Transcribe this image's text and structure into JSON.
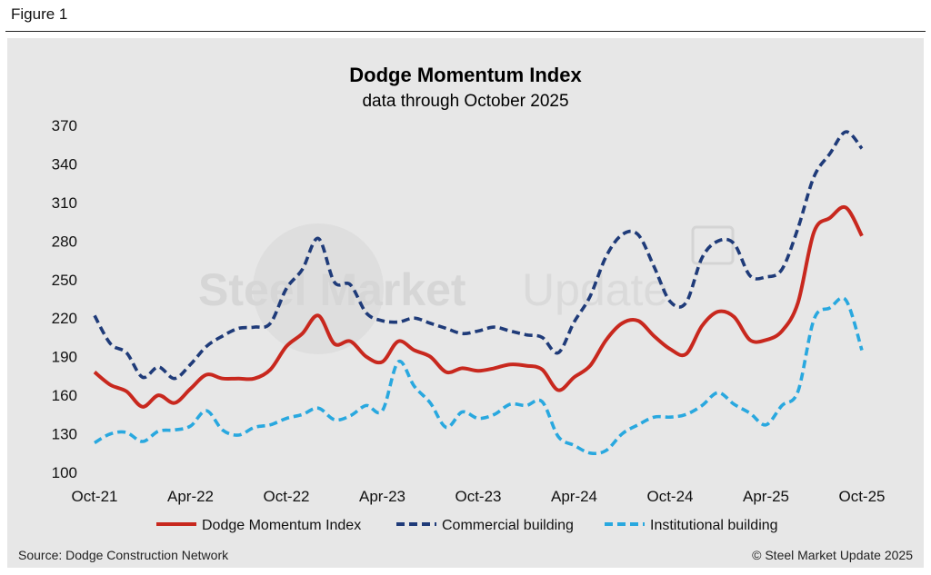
{
  "figure_label": "Figure 1",
  "source": "Source: Dodge Construction Network",
  "copyright": "© Steel Market Update 2025",
  "watermark": {
    "bold": "Steel Market",
    "light": "Update"
  },
  "colors": {
    "dmi": "#c8281e",
    "commercial": "#1f3b79",
    "institutional": "#29a8df"
  },
  "chart_data": {
    "type": "line",
    "title": "Dodge Momentum Index",
    "subtitle": "data through October 2025",
    "ylim": [
      100,
      370
    ],
    "yticks": [
      100,
      130,
      160,
      190,
      220,
      250,
      280,
      310,
      340,
      370
    ],
    "xticks": [
      "Oct-21",
      "Apr-22",
      "Oct-22",
      "Apr-23",
      "Oct-23",
      "Apr-24",
      "Oct-24",
      "Apr-25",
      "Oct-25"
    ],
    "legend_position": "bottom",
    "grid": false,
    "x": [
      "Oct-21",
      "Nov-21",
      "Dec-21",
      "Jan-22",
      "Feb-22",
      "Mar-22",
      "Apr-22",
      "May-22",
      "Jun-22",
      "Jul-22",
      "Aug-22",
      "Sep-22",
      "Oct-22",
      "Nov-22",
      "Dec-22",
      "Jan-23",
      "Feb-23",
      "Mar-23",
      "Apr-23",
      "May-23",
      "Jun-23",
      "Jul-23",
      "Aug-23",
      "Sep-23",
      "Oct-23",
      "Nov-23",
      "Dec-23",
      "Jan-24",
      "Feb-24",
      "Mar-24",
      "Apr-24",
      "May-24",
      "Jun-24",
      "Jul-24",
      "Aug-24",
      "Sep-24",
      "Oct-24",
      "Nov-24",
      "Dec-24",
      "Jan-25",
      "Feb-25",
      "Mar-25",
      "Apr-25",
      "May-25",
      "Jun-25",
      "Jul-25",
      "Aug-25",
      "Sep-25",
      "Oct-25"
    ],
    "series": [
      {
        "name": "Dodge Momentum Index",
        "style": "solid",
        "values": [
          178,
          168,
          163,
          151,
          160,
          154,
          165,
          176,
          173,
          173,
          173,
          180,
          198,
          208,
          222,
          200,
          202,
          190,
          186,
          202,
          195,
          190,
          178,
          181,
          179,
          181,
          184,
          183,
          180,
          164,
          174,
          183,
          203,
          216,
          218,
          206,
          196,
          192,
          214,
          225,
          221,
          203,
          203,
          210,
          232,
          287,
          298,
          306,
          284
        ]
      },
      {
        "name": "Commercial building",
        "style": "dashed",
        "values": [
          222,
          200,
          193,
          174,
          182,
          173,
          184,
          198,
          206,
          212,
          213,
          216,
          243,
          258,
          282,
          248,
          246,
          224,
          218,
          217,
          220,
          216,
          212,
          208,
          210,
          213,
          210,
          207,
          205,
          193,
          217,
          237,
          268,
          285,
          285,
          260,
          233,
          232,
          267,
          280,
          278,
          253,
          252,
          258,
          290,
          330,
          348,
          365,
          352
        ]
      },
      {
        "name": "Institutional building",
        "style": "dashed",
        "values": [
          123,
          130,
          131,
          124,
          132,
          133,
          136,
          148,
          133,
          129,
          135,
          137,
          142,
          145,
          150,
          141,
          144,
          152,
          148,
          186,
          167,
          154,
          135,
          147,
          142,
          145,
          153,
          152,
          155,
          128,
          121,
          115,
          117,
          130,
          137,
          143,
          143,
          145,
          152,
          162,
          153,
          146,
          137,
          152,
          163,
          219,
          228,
          234,
          195
        ]
      }
    ]
  }
}
